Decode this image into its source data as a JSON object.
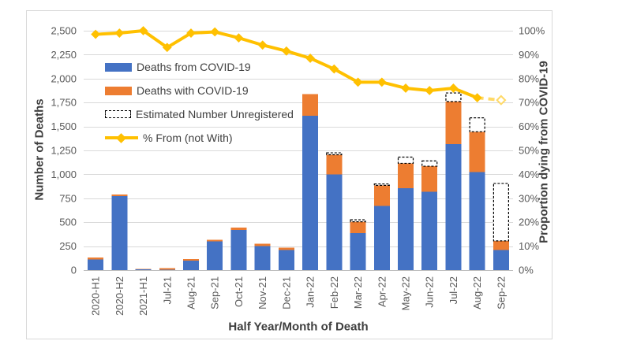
{
  "chart_data": {
    "type": "combo-stacked-bar-line",
    "title": "",
    "categories": [
      "2020-H1",
      "2020-H2",
      "2021-H1",
      "Jul-21",
      "Aug-21",
      "Sep-21",
      "Oct-21",
      "Nov-21",
      "Dec-21",
      "Jan-22",
      "Feb-22",
      "Mar-22",
      "Apr-22",
      "May-22",
      "Jun-22",
      "Jul-22",
      "Aug-22",
      "Sep-22"
    ],
    "series": [
      {
        "name": "Deaths from COVID-19",
        "type": "bar",
        "stack": "deaths",
        "color": "#4472C4",
        "values": [
          110,
          775,
          10,
          5,
          100,
          300,
          420,
          250,
          210,
          1610,
          1000,
          385,
          670,
          855,
          820,
          1315,
          1025,
          210
        ]
      },
      {
        "name": "Deaths with COVID-19",
        "type": "bar",
        "stack": "deaths",
        "color": "#ED7D31",
        "values": [
          20,
          15,
          3,
          15,
          15,
          15,
          25,
          25,
          25,
          230,
          205,
          120,
          215,
          260,
          265,
          445,
          420,
          95
        ]
      },
      {
        "name": "Estimated Number Unregistered",
        "type": "bar",
        "stack": "deaths",
        "fill": "#FFFFFF",
        "border_color": "#000000",
        "border_style": "dashed",
        "values": [
          0,
          0,
          0,
          0,
          0,
          0,
          0,
          0,
          0,
          0,
          20,
          20,
          15,
          65,
          55,
          90,
          145,
          600
        ]
      },
      {
        "name": "% From (not With)",
        "type": "line",
        "axis": "right",
        "color": "#FFC000",
        "marker": "diamond",
        "last_point_estimated": true,
        "estimated_color": "#FFD966",
        "values": [
          98.5,
          99,
          100,
          93,
          99,
          99.5,
          97,
          94,
          91.5,
          88.5,
          84,
          78.5,
          78.5,
          76,
          75,
          76,
          72,
          71
        ]
      }
    ],
    "left_axis": {
      "title": "Number of Deaths",
      "range": [
        0,
        2500
      ],
      "tick_step": 250,
      "tick_labels": [
        "0",
        "250",
        "500",
        "750",
        "1,000",
        "1,250",
        "1,500",
        "1,750",
        "2,000",
        "2,250",
        "2,500"
      ]
    },
    "right_axis": {
      "title": "Proportion dying from COVID-19",
      "range": [
        0,
        100
      ],
      "tick_step": 10,
      "tick_labels": [
        "0%",
        "10%",
        "20%",
        "30%",
        "40%",
        "50%",
        "60%",
        "70%",
        "80%",
        "90%",
        "100%"
      ]
    },
    "x_axis": {
      "title": "Half Year/Month of Death"
    },
    "legend_position": "inside-top-left",
    "grid": true,
    "colors": {
      "gridline": "#D9D9D9",
      "zero_line": "#BFBFBF",
      "axis_labels": "#595959",
      "axis_titles": "#3F3F3F",
      "chart_border": "#D9D9D9",
      "background": "#FFFFFF"
    }
  }
}
